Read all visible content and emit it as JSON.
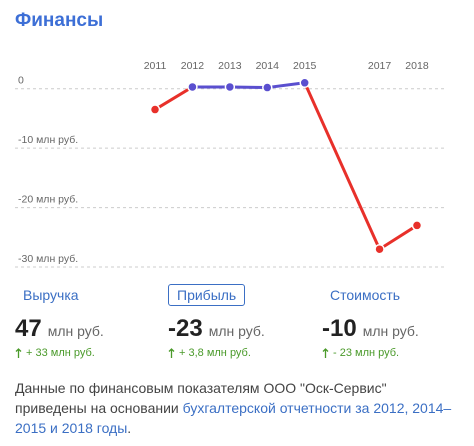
{
  "title": "Финансы",
  "chart_data": {
    "type": "line",
    "x": [
      2011,
      2012,
      2013,
      2014,
      2015,
      2017,
      2018
    ],
    "series": [
      {
        "color": "#5a4fcf",
        "negative_color": "#e8302a",
        "values": [
          -3.5,
          0.3,
          0.3,
          0.2,
          1,
          -27,
          -23
        ]
      }
    ],
    "xlim": [
      2010,
      2019
    ],
    "xticks": [
      2011,
      2012,
      2013,
      2014,
      2015,
      2017,
      2018
    ],
    "ylim": [
      -30.5,
      4.5
    ],
    "yticks": [
      0,
      {
        "value": -10,
        "label": "-10 млн руб."
      },
      {
        "value": -20,
        "label": "-20 млн руб."
      },
      {
        "value": -30,
        "label": "-30 млн руб."
      }
    ],
    "grid": true
  },
  "metrics": [
    {
      "label": "Выручка",
      "value": 47,
      "unit": "млн руб.",
      "change": "+ 33 млн руб."
    },
    {
      "label": "Прибыль",
      "value": -23,
      "unit": "млн руб.",
      "change": "+ 3,8 млн руб."
    },
    {
      "label": "Стоимость",
      "value": -10,
      "unit": "млн руб.",
      "change": "- 23 млн руб."
    }
  ],
  "note": {
    "text": "Данные по финансовым показателям ООО \"Оск-Сервис\" приведены на основании ",
    "link": "бухгалтерской отчетности за 2012, 2014–2015 и 2018 годы",
    "end": "."
  }
}
